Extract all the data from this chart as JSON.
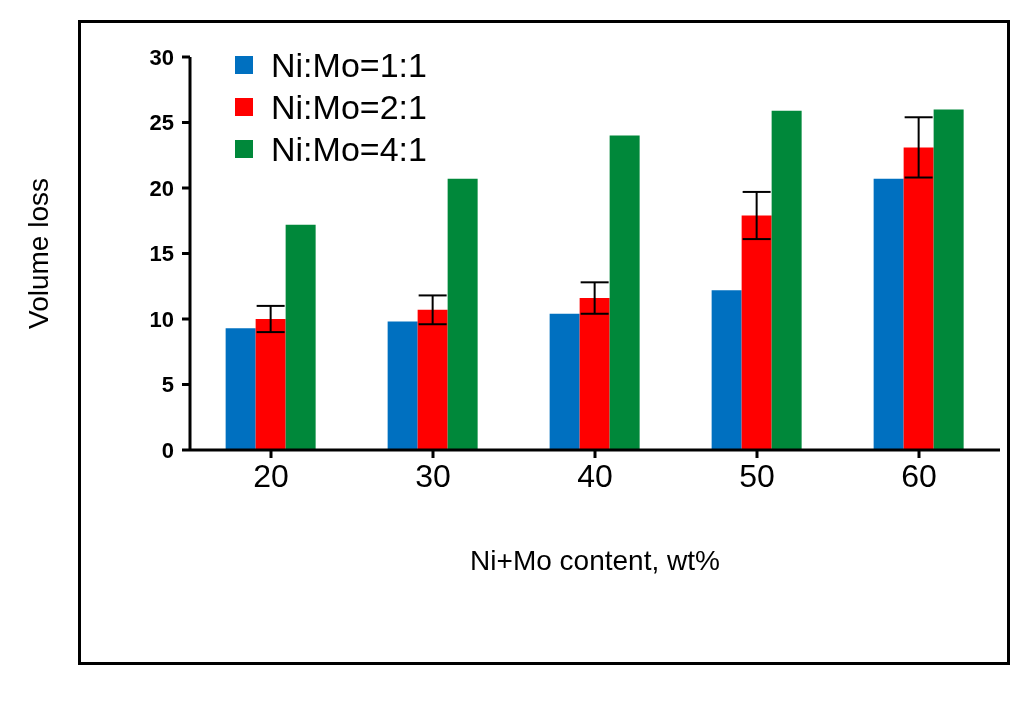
{
  "chart_data": {
    "type": "bar",
    "xlabel": "Ni+Mo content, wt%",
    "ylabel": "Volume loss",
    "categories": [
      "20",
      "30",
      "40",
      "50",
      "60"
    ],
    "series": [
      {
        "name": "Ni:Mo=1:1",
        "color": "#0070c0",
        "values": [
          9.3,
          9.8,
          10.4,
          12.2,
          20.7
        ]
      },
      {
        "name": "Ni:Mo=2:1",
        "color": "#ff0000",
        "values": [
          10.0,
          10.7,
          11.6,
          17.9,
          23.1
        ],
        "errors": [
          1.0,
          1.1,
          1.2,
          1.8,
          2.3
        ]
      },
      {
        "name": "Ni:Mo=4:1",
        "color": "#00883a",
        "values": [
          17.2,
          20.7,
          24.0,
          25.9,
          26.0
        ]
      }
    ],
    "ylim": [
      0,
      30
    ],
    "yticks": [
      0,
      5,
      10,
      15,
      20,
      25,
      30
    ],
    "grid": false,
    "legend": "top left"
  }
}
